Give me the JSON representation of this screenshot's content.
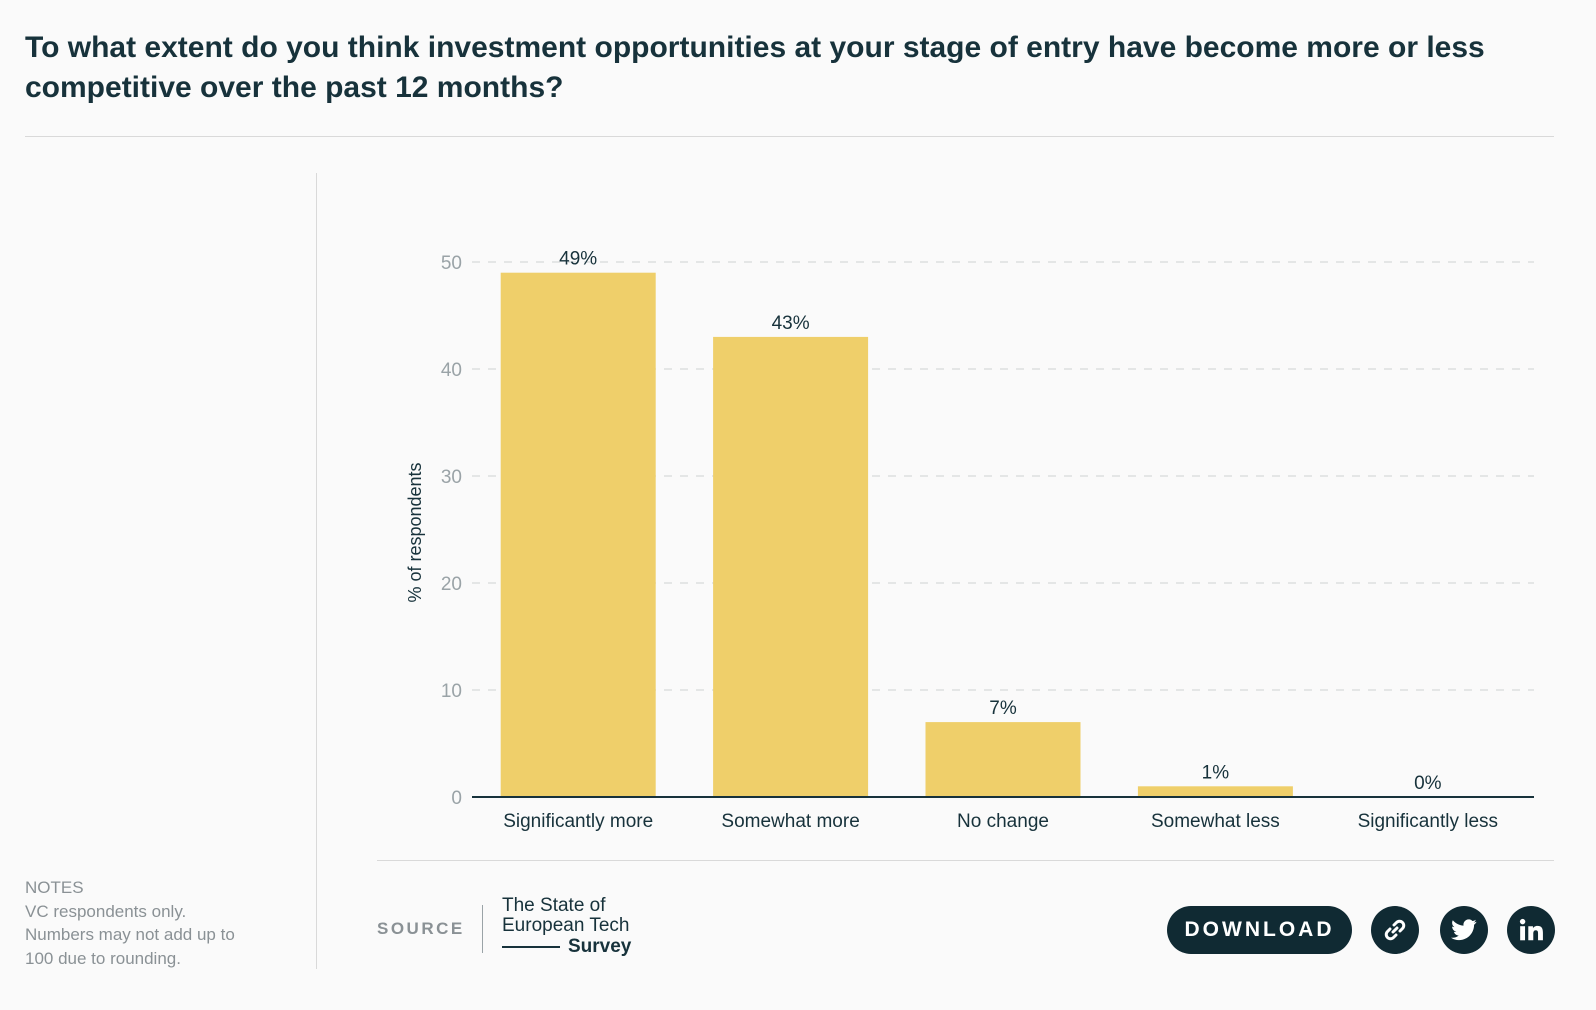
{
  "title": "To what extent do you think investment opportunities at your stage of entry have become more or less competitive over the past 12 months?",
  "notes": {
    "heading": "NOTES",
    "lines": [
      "VC respondents only.",
      "Numbers may not add up to",
      "100 due to rounding."
    ]
  },
  "chart_data": {
    "type": "bar",
    "categories": [
      "Significantly more",
      "Somewhat more",
      "No change",
      "Somewhat less",
      "Significantly less"
    ],
    "values": [
      49,
      43,
      7,
      1,
      0
    ],
    "data_labels": [
      "49%",
      "43%",
      "7%",
      "1%",
      "0%"
    ],
    "ylabel": "% of respondents",
    "ylim": [
      0,
      50
    ],
    "yticks": [
      0,
      10,
      20,
      30,
      40,
      50
    ],
    "grid": true,
    "bar_color": "#efcf6a"
  },
  "footer": {
    "source_label": "SOURCE",
    "logo_line1": "The State of",
    "logo_line2": "European Tech",
    "logo_line3": "Survey",
    "download_label": "DOWNLOAD",
    "share_icons": [
      "link-icon",
      "twitter-icon",
      "linkedin-icon"
    ]
  },
  "colors": {
    "dark": "#102a33",
    "text": "#17323b",
    "muted": "#8a9195",
    "bar": "#efcf6a"
  }
}
